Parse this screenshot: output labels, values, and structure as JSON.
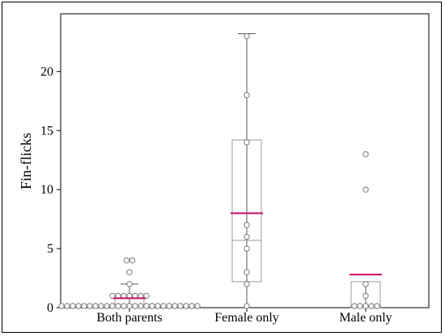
{
  "chart_data": {
    "type": "box",
    "title": "",
    "xlabel": "",
    "ylabel": "Fin-flicks",
    "categories": [
      "Both parents",
      "Female only",
      "Male only"
    ],
    "ylim": [
      0,
      24
    ],
    "yticks": [
      0,
      5,
      10,
      15,
      20
    ],
    "grid": false,
    "colors": {
      "box": "#9a9a9a",
      "whisker": "#555555",
      "point": "#7a7a7a",
      "mean": "#c8106a"
    },
    "series": [
      {
        "category": "Both parents",
        "min": 0,
        "q1": 0,
        "median": 0,
        "q3": 1,
        "max": 2,
        "mean": 0.8,
        "points": [
          [
            0,
            25
          ],
          [
            1,
            7
          ],
          [
            2,
            1
          ],
          [
            3,
            1
          ],
          [
            4,
            2
          ]
        ]
      },
      {
        "category": "Female only",
        "min": 0,
        "q1": 2.2,
        "median": 5.7,
        "q3": 14.2,
        "max": 23.2,
        "mean": 8.0,
        "points": [
          [
            0,
            1
          ],
          [
            2,
            1
          ],
          [
            3,
            1
          ],
          [
            5,
            1
          ],
          [
            6,
            1
          ],
          [
            7,
            1
          ],
          [
            14,
            1
          ],
          [
            18,
            1
          ],
          [
            23,
            1
          ]
        ]
      },
      {
        "category": "Male only",
        "min": 0,
        "q1": 0,
        "median": 0,
        "q3": 2.2,
        "max": 2.2,
        "mean": 2.8,
        "points": [
          [
            0,
            5
          ],
          [
            1,
            1
          ],
          [
            2,
            1
          ],
          [
            10,
            1
          ],
          [
            13,
            1
          ]
        ]
      }
    ]
  }
}
